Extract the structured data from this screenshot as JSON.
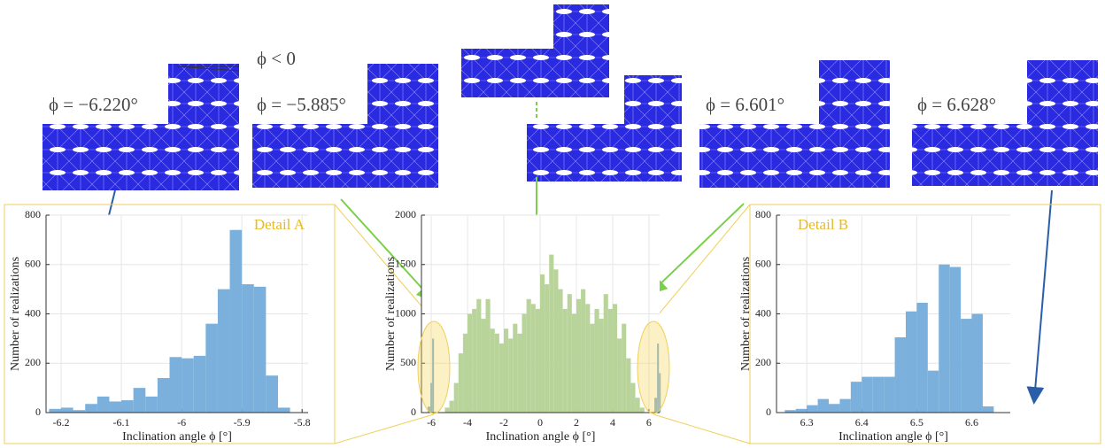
{
  "mesh_labels": [
    "ϕ = −6.220°",
    "ϕ = −5.885°",
    "ϕ = 6.601°",
    "ϕ = 6.628°",
    "ϕ < 0"
  ],
  "chart_data": [
    {
      "type": "histogram",
      "annotation": "Detail A",
      "color": "#7ab0db",
      "grid": true,
      "xlabel": "Inclination angle ϕ [°]",
      "ylabel": "Number of realizations",
      "bins": [
        -6.22,
        -6.2,
        -6.18,
        -6.16,
        -6.14,
        -6.12,
        -6.1,
        -6.08,
        -6.06,
        -6.04,
        -6.02,
        -6,
        -5.98,
        -5.96,
        -5.94,
        -5.92,
        -5.9,
        -5.88,
        -5.86,
        -5.84,
        -5.82
      ],
      "counts": [
        15,
        20,
        10,
        35,
        65,
        45,
        50,
        100,
        65,
        140,
        225,
        220,
        230,
        360,
        500,
        740,
        520,
        510,
        150,
        20
      ],
      "xlim": [
        -6.225,
        -5.79
      ],
      "ylim": [
        0,
        800
      ],
      "xticks": [
        -6.2,
        -6.1,
        -6,
        -5.9,
        -5.8
      ],
      "yticks": [
        0,
        200,
        400,
        600,
        800
      ]
    },
    {
      "type": "histogram",
      "color": "#b8d49a",
      "grid": true,
      "xlabel": "Inclination angle ϕ [°]",
      "ylabel": "Number of realizations",
      "bins": [
        -5.25,
        -5,
        -4.75,
        -4.5,
        -4.25,
        -4,
        -3.75,
        -3.5,
        -3.25,
        -3,
        -2.75,
        -2.5,
        -2.25,
        -2,
        -1.75,
        -1.5,
        -1.25,
        -1,
        -0.75,
        -0.5,
        -0.25,
        0,
        0.25,
        0.5,
        0.75,
        1,
        1.25,
        1.5,
        1.75,
        2,
        2.25,
        2.5,
        2.75,
        3,
        3.25,
        3.5,
        3.75,
        4,
        4.25,
        4.5,
        4.75,
        5,
        5.25,
        5.5,
        5.75
      ],
      "counts": [
        50,
        120,
        300,
        600,
        800,
        1000,
        1050,
        1150,
        950,
        1150,
        850,
        800,
        700,
        850,
        750,
        900,
        800,
        1000,
        1150,
        1100,
        1050,
        1400,
        1300,
        1600,
        1450,
        1250,
        1050,
        1200,
        1000,
        1150,
        1250,
        1100,
        900,
        1050,
        950,
        1200,
        1050,
        1100,
        750,
        900,
        550,
        300,
        150,
        50
      ],
      "highlight": [
        {
          "color": "#7ab0db",
          "bins": [
            -6.2,
            -6.05,
            -5.95,
            -5.85
          ],
          "counts": [
            60,
            300,
            750
          ]
        },
        {
          "color": "#7ab0db",
          "bins": [
            6.3,
            6.45,
            6.55,
            6.65
          ],
          "counts": [
            150,
            700,
            400
          ]
        }
      ],
      "xlim": [
        -6.54,
        6.59
      ],
      "ylim": [
        0,
        2000
      ],
      "xticks": [
        -6,
        -4,
        -2,
        0,
        2,
        4,
        6
      ],
      "yticks": [
        0,
        500,
        1000,
        1500,
        2000
      ]
    },
    {
      "type": "histogram",
      "annotation": "Detail B",
      "color": "#7ab0db",
      "grid": true,
      "xlabel": "Inclination angle ϕ [°]",
      "ylabel": "Number of realizations",
      "bins": [
        6.26,
        6.28,
        6.3,
        6.32,
        6.34,
        6.36,
        6.38,
        6.4,
        6.42,
        6.44,
        6.46,
        6.48,
        6.5,
        6.52,
        6.54,
        6.56,
        6.58,
        6.6,
        6.62,
        6.64
      ],
      "counts": [
        10,
        15,
        30,
        55,
        35,
        55,
        125,
        145,
        145,
        145,
        305,
        410,
        445,
        170,
        600,
        590,
        380,
        400,
        25
      ],
      "xlim": [
        6.245,
        6.67
      ],
      "ylim": [
        0,
        800
      ],
      "xticks": [
        6.3,
        6.4,
        6.5,
        6.6
      ],
      "yticks": [
        0,
        200,
        400,
        600,
        800
      ]
    }
  ]
}
